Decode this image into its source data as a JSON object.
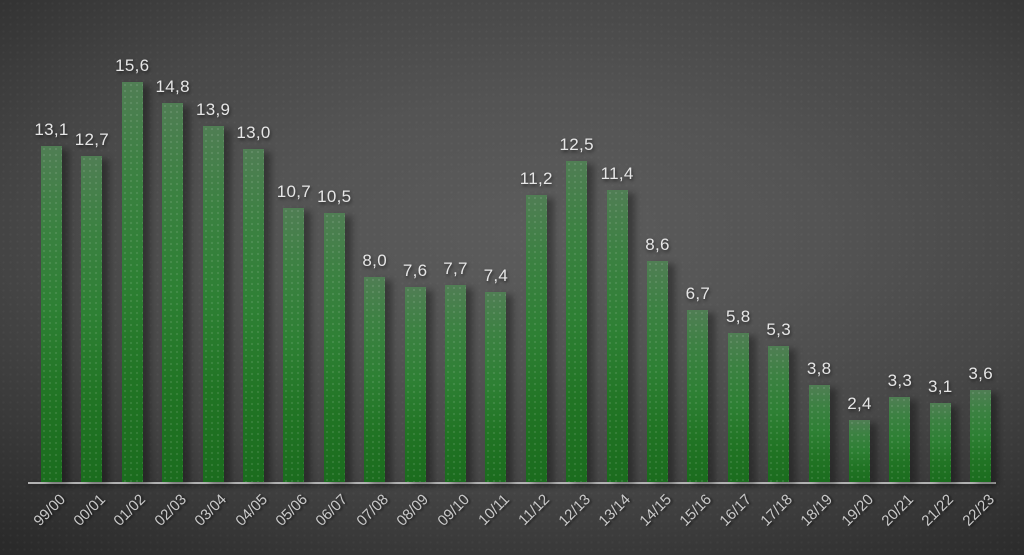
{
  "chart_data": {
    "type": "bar",
    "categories": [
      "99/00",
      "00/01",
      "01/02",
      "02/03",
      "03/04",
      "04/05",
      "05/06",
      "06/07",
      "07/08",
      "08/09",
      "09/10",
      "10/11",
      "11/12",
      "12/13",
      "13/14",
      "14/15",
      "15/16",
      "16/17",
      "17/18",
      "18/19",
      "19/20",
      "20/21",
      "21/22",
      "22/23"
    ],
    "values": [
      13.1,
      12.7,
      15.6,
      14.8,
      13.9,
      13.0,
      10.7,
      10.5,
      8.0,
      7.6,
      7.7,
      7.4,
      11.2,
      12.5,
      11.4,
      8.6,
      6.7,
      5.8,
      5.3,
      3.8,
      2.4,
      3.3,
      3.1,
      3.6
    ],
    "value_labels": [
      "13,1",
      "12,7",
      "15,6",
      "14,8",
      "13,9",
      "13,0",
      "10,7",
      "10,5",
      "8,0",
      "7,6",
      "7,7",
      "7,4",
      "11,2",
      "12,5",
      "11,4",
      "8,6",
      "6,7",
      "5,8",
      "5,3",
      "3,8",
      "2,4",
      "3,3",
      "3,1",
      "3,6"
    ],
    "title": "",
    "xlabel": "",
    "ylabel": "",
    "ylim": [
      0,
      15.6
    ],
    "grid": false,
    "legend": false,
    "colors": {
      "bar_gradient_top": "#507e54",
      "bar_gradient_mid": "#2e8034",
      "bar_gradient_bottom": "#1b6c1e",
      "value_label": "#e6e6e6",
      "axis_label": "#c9c9c9",
      "axis_line": "#b2b2b2",
      "background_center": "#5c5c5c",
      "background_edge": "#242424"
    }
  }
}
